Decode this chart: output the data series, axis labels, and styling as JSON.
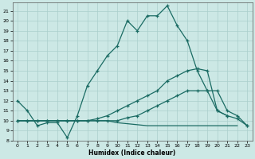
{
  "xlabel": "Humidex (Indice chaleur)",
  "bg_color": "#cce8e5",
  "grid_color": "#aacfcc",
  "line_color": "#1a6b63",
  "xlim": [
    -0.5,
    23.5
  ],
  "ylim": [
    8,
    21.8
  ],
  "xticks": [
    0,
    1,
    2,
    3,
    4,
    5,
    6,
    7,
    8,
    9,
    10,
    11,
    12,
    13,
    14,
    15,
    16,
    17,
    18,
    19,
    20,
    21,
    22,
    23
  ],
  "yticks": [
    8,
    9,
    10,
    11,
    12,
    13,
    14,
    15,
    16,
    17,
    18,
    19,
    20,
    21
  ],
  "line1_x": [
    0,
    1,
    2,
    3,
    4,
    5,
    6,
    7,
    8,
    9,
    10,
    11,
    12,
    13,
    14,
    15,
    16,
    17,
    18,
    19,
    20,
    21
  ],
  "line1_y": [
    12,
    11,
    9.5,
    9.8,
    9.8,
    8.3,
    10.5,
    13.5,
    15,
    16.5,
    17.5,
    20,
    19,
    20.5,
    20.5,
    21.5,
    19.5,
    18,
    15,
    13,
    11,
    10.5
  ],
  "line2_x": [
    0,
    1,
    2,
    3,
    4,
    5,
    6,
    7,
    8,
    9,
    10,
    11,
    12,
    13,
    14,
    15,
    16,
    17,
    18,
    19,
    20,
    21,
    22,
    23
  ],
  "line2_y": [
    10,
    10,
    10,
    10,
    10,
    10,
    10,
    10,
    10.2,
    10.5,
    11,
    11.5,
    12,
    12.5,
    13,
    14,
    14.5,
    15,
    15.2,
    15,
    11,
    10.5,
    10.2,
    9.5
  ],
  "line3_x": [
    0,
    1,
    2,
    3,
    4,
    5,
    6,
    7,
    8,
    9,
    10,
    11,
    12,
    13,
    14,
    15,
    16,
    17,
    18,
    19,
    20,
    21,
    22,
    23
  ],
  "line3_y": [
    10,
    10,
    10,
    10,
    10,
    10,
    10,
    10,
    10,
    10,
    10,
    10.3,
    10.5,
    11,
    11.5,
    12,
    12.5,
    13,
    13,
    13,
    13,
    11,
    10.5,
    9.5
  ],
  "line4_x": [
    0,
    1,
    2,
    3,
    4,
    5,
    6,
    7,
    8,
    9,
    10,
    11,
    12,
    13,
    14,
    15,
    16,
    17,
    18,
    19,
    20,
    21,
    22
  ],
  "line4_y": [
    10,
    10,
    10,
    10,
    10,
    10,
    10,
    10,
    10,
    10,
    9.8,
    9.7,
    9.6,
    9.5,
    9.5,
    9.5,
    9.5,
    9.5,
    9.5,
    9.5,
    9.5,
    9.5,
    9.5
  ]
}
